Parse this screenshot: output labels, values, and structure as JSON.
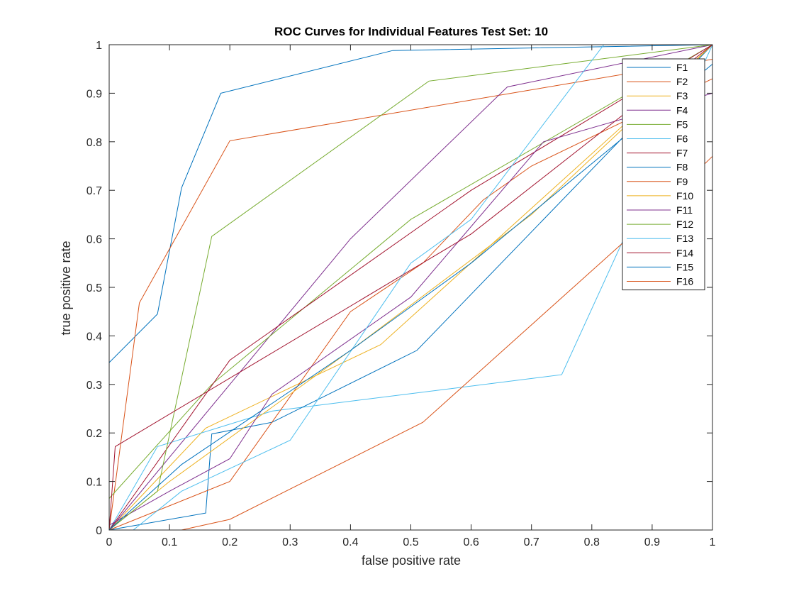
{
  "chart_data": {
    "type": "line",
    "title": "ROC Curves for Individual Features Test Set: 10",
    "xlabel": "false positive rate",
    "ylabel": "true positive rate",
    "xlim": [
      0,
      1
    ],
    "ylim": [
      0,
      1
    ],
    "xticks": [
      0,
      0.1,
      0.2,
      0.3,
      0.4,
      0.5,
      0.6,
      0.7,
      0.8,
      0.9,
      1
    ],
    "yticks": [
      0,
      0.1,
      0.2,
      0.3,
      0.4,
      0.5,
      0.6,
      0.7,
      0.8,
      0.9,
      1
    ],
    "xtick_labels": [
      "0",
      "0.1",
      "0.2",
      "0.3",
      "0.4",
      "0.5",
      "0.6",
      "0.7",
      "0.8",
      "0.9",
      "1"
    ],
    "ytick_labels": [
      "0",
      "0.1",
      "0.2",
      "0.3",
      "0.4",
      "0.5",
      "0.6",
      "0.7",
      "0.8",
      "0.9",
      "1"
    ],
    "grid": false,
    "legend_position": "top-right",
    "series": [
      {
        "name": "F1",
        "color": "#0072BD",
        "points": [
          [
            0,
            0
          ],
          [
            0,
            0.345
          ],
          [
            0.08,
            0.445
          ],
          [
            0.12,
            0.705
          ],
          [
            0.185,
            0.9
          ],
          [
            0.47,
            0.988
          ],
          [
            1,
            1
          ]
        ]
      },
      {
        "name": "F2",
        "color": "#D95319",
        "points": [
          [
            0,
            0
          ],
          [
            0.05,
            0.468
          ],
          [
            0.2,
            0.802
          ],
          [
            1,
            0.97
          ]
        ]
      },
      {
        "name": "F3",
        "color": "#EDB120",
        "points": [
          [
            0,
            0
          ],
          [
            0.16,
            0.21
          ],
          [
            0.45,
            0.382
          ],
          [
            1,
            1
          ]
        ]
      },
      {
        "name": "F4",
        "color": "#7E2F8E",
        "points": [
          [
            0,
            0
          ],
          [
            0.2,
            0.3
          ],
          [
            0.4,
            0.6
          ],
          [
            0.66,
            0.913
          ],
          [
            1,
            1
          ]
        ]
      },
      {
        "name": "F5",
        "color": "#77AC30",
        "points": [
          [
            0,
            0.065
          ],
          [
            0.17,
            0.3
          ],
          [
            0.5,
            0.64
          ],
          [
            1,
            1
          ]
        ]
      },
      {
        "name": "F6",
        "color": "#4DBEEE",
        "points": [
          [
            0,
            0
          ],
          [
            0.08,
            0.172
          ],
          [
            0.27,
            0.245
          ],
          [
            0.75,
            0.32
          ],
          [
            1,
            1
          ]
        ]
      },
      {
        "name": "F7",
        "color": "#A2142F",
        "points": [
          [
            0,
            0
          ],
          [
            0.2,
            0.35
          ],
          [
            0.6,
            0.7
          ],
          [
            1,
            1
          ]
        ]
      },
      {
        "name": "F8",
        "color": "#0072BD",
        "points": [
          [
            0,
            0
          ],
          [
            0.16,
            0.035
          ],
          [
            0.17,
            0.198
          ],
          [
            0.27,
            0.222
          ],
          [
            0.51,
            0.37
          ],
          [
            1,
            1
          ]
        ]
      },
      {
        "name": "F9",
        "color": "#D95319",
        "points": [
          [
            0,
            0
          ],
          [
            0.2,
            0.1
          ],
          [
            0.4,
            0.45
          ],
          [
            0.52,
            0.55
          ],
          [
            0.62,
            0.68
          ],
          [
            0.7,
            0.75
          ],
          [
            1,
            0.93
          ]
        ]
      },
      {
        "name": "F10",
        "color": "#EDB120",
        "points": [
          [
            0,
            0
          ],
          [
            0.1,
            0.1
          ],
          [
            0.4,
            0.37
          ],
          [
            0.7,
            0.65
          ],
          [
            1,
            1
          ]
        ]
      },
      {
        "name": "F11",
        "color": "#7E2F8E",
        "points": [
          [
            0,
            0.01
          ],
          [
            0.1,
            0.08
          ],
          [
            0.2,
            0.147
          ],
          [
            0.27,
            0.28
          ],
          [
            0.5,
            0.48
          ],
          [
            0.72,
            0.8
          ],
          [
            1,
            0.9
          ]
        ]
      },
      {
        "name": "F12",
        "color": "#77AC30",
        "points": [
          [
            0,
            0
          ],
          [
            0.08,
            0.08
          ],
          [
            0.17,
            0.605
          ],
          [
            0.53,
            0.925
          ],
          [
            1,
            1
          ]
        ]
      },
      {
        "name": "F13",
        "color": "#4DBEEE",
        "points": [
          [
            0.04,
            0
          ],
          [
            0.12,
            0.08
          ],
          [
            0.3,
            0.185
          ],
          [
            0.5,
            0.55
          ],
          [
            0.6,
            0.64
          ],
          [
            0.82,
            1
          ],
          [
            1,
            1
          ]
        ]
      },
      {
        "name": "F14",
        "color": "#A2142F",
        "points": [
          [
            0,
            0
          ],
          [
            0.01,
            0.172
          ],
          [
            0.6,
            0.61
          ],
          [
            1,
            1
          ]
        ]
      },
      {
        "name": "F15",
        "color": "#0072BD",
        "points": [
          [
            0,
            0
          ],
          [
            0.12,
            0.135
          ],
          [
            0.4,
            0.37
          ],
          [
            0.6,
            0.55
          ],
          [
            1,
            0.96
          ]
        ]
      },
      {
        "name": "F16",
        "color": "#D95319",
        "points": [
          [
            0.12,
            0
          ],
          [
            0.2,
            0.022
          ],
          [
            0.52,
            0.222
          ],
          [
            0.85,
            0.59
          ],
          [
            1,
            0.77
          ]
        ]
      }
    ]
  }
}
